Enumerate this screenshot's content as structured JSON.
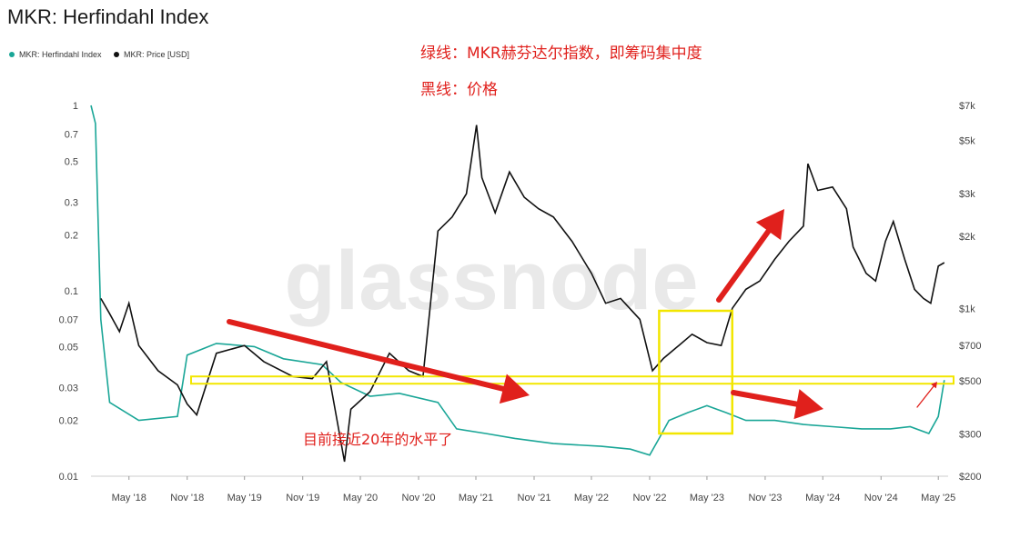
{
  "title": "MKR: Herfindahl Index",
  "legend": [
    {
      "name": "MKR: Herfindahl Index",
      "color": "#1aa697"
    },
    {
      "name": "MKR: Price [USD]",
      "color": "#111111"
    }
  ],
  "watermark": "glassnode",
  "annotations": {
    "green_line_note": "绿线：MKR赫芬达尔指数，即筹码集中度",
    "black_line_note": "黑线：价格",
    "current_level_note": "目前接近20年的水平了"
  },
  "colors": {
    "annotation": "#e0201c",
    "highlight": "#f2e600",
    "herfindahl": "#1aa697",
    "price": "#111111"
  },
  "chart_data": {
    "type": "line",
    "title": "MKR: Herfindahl Index",
    "x_ticks": [
      "May '18",
      "Nov '18",
      "May '19",
      "Nov '19",
      "May '20",
      "Nov '20",
      "May '21",
      "Nov '21",
      "May '22",
      "Nov '22",
      "May '23",
      "Nov '23",
      "May '24",
      "Nov '24",
      "May '25"
    ],
    "left_axis": {
      "scale": "log",
      "ticks": [
        "1",
        "0.7",
        "0.5",
        "0.3",
        "0.2",
        "0.1",
        "0.07",
        "0.05",
        "0.03",
        "0.02",
        "0.01"
      ],
      "range": [
        0.01,
        1
      ]
    },
    "right_axis": {
      "scale": "log",
      "ticks": [
        "$7k",
        "$5k",
        "$3k",
        "$2k",
        "$1k",
        "$700",
        "$500",
        "$300",
        "$200"
      ],
      "range": [
        200,
        7000
      ]
    },
    "series": [
      {
        "name": "MKR: Herfindahl Index",
        "axis": "left",
        "x": [
          "2018-01-01",
          "2018-01-15",
          "2018-02-01",
          "2018-03-01",
          "2018-06-01",
          "2018-10-01",
          "2018-11-01",
          "2019-02-01",
          "2019-06-01",
          "2019-09-01",
          "2020-01-01",
          "2020-03-01",
          "2020-06-01",
          "2020-09-01",
          "2021-01-01",
          "2021-03-01",
          "2021-06-01",
          "2021-09-01",
          "2022-01-01",
          "2022-06-01",
          "2022-09-01",
          "2022-11-01",
          "2022-12-01",
          "2023-01-01",
          "2023-03-01",
          "2023-05-01",
          "2023-07-01",
          "2023-09-01",
          "2023-12-01",
          "2024-03-01",
          "2024-06-01",
          "2024-09-01",
          "2024-12-01",
          "2025-02-01",
          "2025-04-01",
          "2025-05-01",
          "2025-05-20"
        ],
        "y": [
          1.0,
          0.8,
          0.07,
          0.025,
          0.02,
          0.021,
          0.045,
          0.052,
          0.05,
          0.043,
          0.04,
          0.032,
          0.027,
          0.028,
          0.025,
          0.018,
          0.017,
          0.016,
          0.015,
          0.0145,
          0.014,
          0.013,
          0.016,
          0.02,
          0.022,
          0.024,
          0.022,
          0.02,
          0.02,
          0.019,
          0.0185,
          0.018,
          0.018,
          0.0185,
          0.017,
          0.021,
          0.033
        ]
      },
      {
        "name": "MKR: Price [USD]",
        "axis": "right",
        "x": [
          "2018-02-01",
          "2018-03-01",
          "2018-04-01",
          "2018-05-01",
          "2018-06-01",
          "2018-08-01",
          "2018-10-01",
          "2018-11-01",
          "2018-12-01",
          "2019-02-01",
          "2019-05-01",
          "2019-07-01",
          "2019-10-01",
          "2019-12-01",
          "2020-01-15",
          "2020-03-12",
          "2020-04-01",
          "2020-06-01",
          "2020-08-01",
          "2020-10-01",
          "2020-11-15",
          "2021-01-01",
          "2021-02-15",
          "2021-04-01",
          "2021-05-03",
          "2021-05-20",
          "2021-07-01",
          "2021-08-15",
          "2021-10-01",
          "2021-11-15",
          "2022-01-01",
          "2022-03-01",
          "2022-05-01",
          "2022-06-15",
          "2022-08-01",
          "2022-10-01",
          "2022-11-10",
          "2022-12-15",
          "2023-02-01",
          "2023-03-15",
          "2023-05-01",
          "2023-06-15",
          "2023-07-20",
          "2023-09-01",
          "2023-10-15",
          "2023-12-01",
          "2024-01-15",
          "2024-03-01",
          "2024-03-15",
          "2024-04-15",
          "2024-06-01",
          "2024-07-15",
          "2024-08-05",
          "2024-09-15",
          "2024-10-15",
          "2024-11-15",
          "2024-12-10",
          "2025-01-15",
          "2025-02-15",
          "2025-03-15",
          "2025-04-07",
          "2025-05-01",
          "2025-05-20"
        ],
        "y": [
          1100,
          950,
          800,
          1050,
          700,
          550,
          480,
          400,
          360,
          650,
          700,
          600,
          520,
          510,
          600,
          230,
          380,
          450,
          650,
          550,
          520,
          2100,
          2400,
          3000,
          5800,
          3500,
          2500,
          3700,
          2900,
          2600,
          2400,
          1900,
          1400,
          1050,
          1100,
          900,
          550,
          620,
          700,
          780,
          720,
          700,
          1000,
          1200,
          1300,
          1600,
          1900,
          2200,
          4000,
          3100,
          3200,
          2600,
          1800,
          1400,
          1300,
          1900,
          2300,
          1600,
          1200,
          1100,
          1050,
          1500,
          1550
        ]
      }
    ]
  }
}
